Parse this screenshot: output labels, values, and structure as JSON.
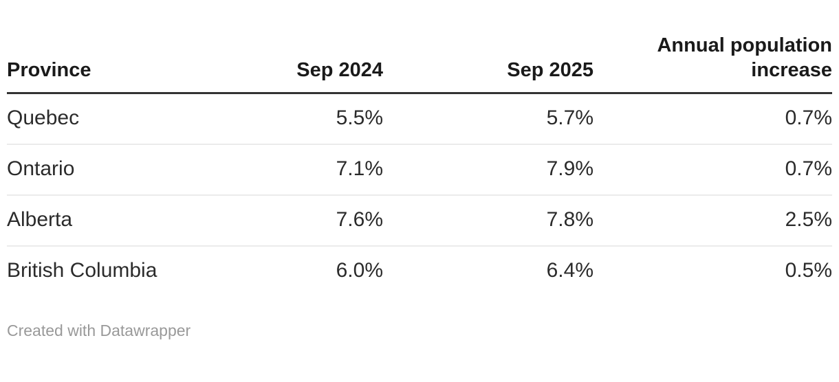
{
  "chart_data": {
    "type": "table",
    "columns": [
      "Province",
      "Sep 2024",
      "Sep 2025",
      "Annual population increase"
    ],
    "rows": [
      [
        "Quebec",
        "5.5%",
        "5.7%",
        "0.7%"
      ],
      [
        "Ontario",
        "7.1%",
        "7.9%",
        "0.7%"
      ],
      [
        "Alberta",
        "7.6%",
        "7.8%",
        "2.5%"
      ],
      [
        "British Columbia",
        "6.0%",
        "6.4%",
        "0.5%"
      ]
    ]
  },
  "footer": {
    "attribution": "Created with Datawrapper"
  },
  "colors": {
    "background": "#ffffff",
    "header_text": "#1a1a1a",
    "body_text": "#2b2b2b",
    "header_rule": "#333333",
    "row_divider": "#ebebeb",
    "footer_text": "#999999"
  }
}
